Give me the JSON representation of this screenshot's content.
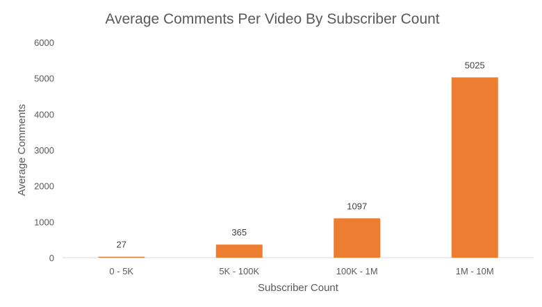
{
  "chart_data": {
    "type": "bar",
    "title": "Average Comments Per Video By Subscriber Count",
    "xlabel": "Subscriber Count",
    "ylabel": "Average Comments",
    "categories": [
      "0 - 5K",
      "5K - 100K",
      "100K - 1M",
      "1M - 10M"
    ],
    "values": [
      27,
      365,
      1097,
      5025
    ],
    "data_labels": [
      "27",
      "365",
      "1097",
      "5025"
    ],
    "yticks": [
      0,
      1000,
      2000,
      3000,
      4000,
      5000,
      6000
    ],
    "ylim": [
      0,
      6000
    ],
    "grid": false,
    "legend": "none",
    "bar_color": "#ED7D31",
    "axis_color": "#D9D9D9"
  }
}
